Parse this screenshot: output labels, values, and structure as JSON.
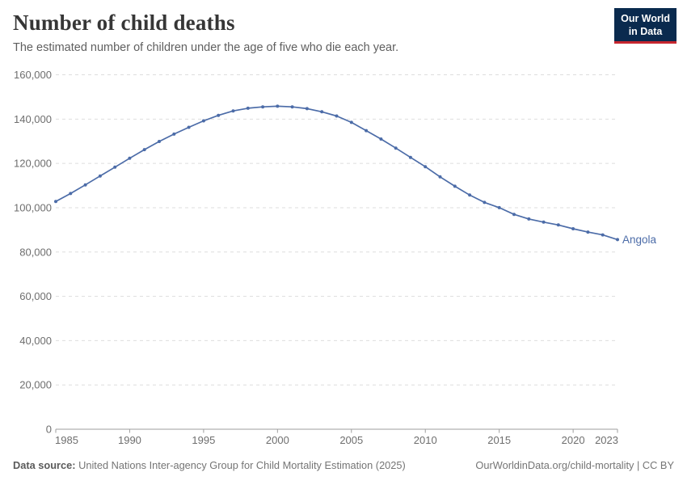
{
  "header": {
    "title": "Number of child deaths",
    "subtitle": "The estimated number of children under the age of five who die each year.",
    "logo": {
      "line1": "Our World",
      "line2": "in Data"
    }
  },
  "footer": {
    "source_label": "Data source:",
    "source_text": "United Nations Inter-agency Group for Child Mortality Estimation (2025)",
    "link_text": "OurWorldinData.org/child-mortality | CC BY"
  },
  "colors": {
    "line": "#4c6ca8",
    "series_label": "#4c6ca8",
    "grid": "#dddddd",
    "axis": "#9e9e9e",
    "tick_text": "#6e6e6e",
    "logo_bg": "#0a2a4e",
    "logo_stripe": "#c6262e"
  },
  "chart_data": {
    "type": "line",
    "title": "Number of child deaths",
    "xlabel": "",
    "ylabel": "",
    "ylim": [
      0,
      160000
    ],
    "xlim": [
      1985,
      2023
    ],
    "grid": "horizontal-dashed",
    "legend": "end-of-line-label",
    "yticks": [
      {
        "value": 0,
        "label": "0"
      },
      {
        "value": 20000,
        "label": "20,000"
      },
      {
        "value": 40000,
        "label": "40,000"
      },
      {
        "value": 60000,
        "label": "60,000"
      },
      {
        "value": 80000,
        "label": "80,000"
      },
      {
        "value": 100000,
        "label": "100,000"
      },
      {
        "value": 120000,
        "label": "120,000"
      },
      {
        "value": 140000,
        "label": "140,000"
      },
      {
        "value": 160000,
        "label": "160,000"
      }
    ],
    "xticks": [
      {
        "value": 1985,
        "label": "1985"
      },
      {
        "value": 1990,
        "label": "1990"
      },
      {
        "value": 1995,
        "label": "1995"
      },
      {
        "value": 2000,
        "label": "2000"
      },
      {
        "value": 2005,
        "label": "2005"
      },
      {
        "value": 2010,
        "label": "2010"
      },
      {
        "value": 2015,
        "label": "2015"
      },
      {
        "value": 2020,
        "label": "2020"
      },
      {
        "value": 2023,
        "label": "2023"
      }
    ],
    "series": [
      {
        "name": "Angola",
        "x": [
          1985,
          1986,
          1987,
          1988,
          1989,
          1990,
          1991,
          1992,
          1993,
          1994,
          1995,
          1996,
          1997,
          1998,
          1999,
          2000,
          2001,
          2002,
          2003,
          2004,
          2005,
          2006,
          2007,
          2008,
          2009,
          2010,
          2011,
          2012,
          2013,
          2014,
          2015,
          2016,
          2017,
          2018,
          2019,
          2020,
          2021,
          2022,
          2023
        ],
        "values": [
          102800,
          106400,
          110300,
          114300,
          118300,
          122300,
          126200,
          129900,
          133200,
          136300,
          139200,
          141700,
          143700,
          144900,
          145500,
          145800,
          145500,
          144700,
          143300,
          141400,
          138500,
          134800,
          131000,
          126900,
          122700,
          118500,
          113900,
          109700,
          105700,
          102400,
          100000,
          97000,
          94900,
          93500,
          92200,
          90500,
          89000,
          87700,
          85600
        ]
      }
    ]
  }
}
